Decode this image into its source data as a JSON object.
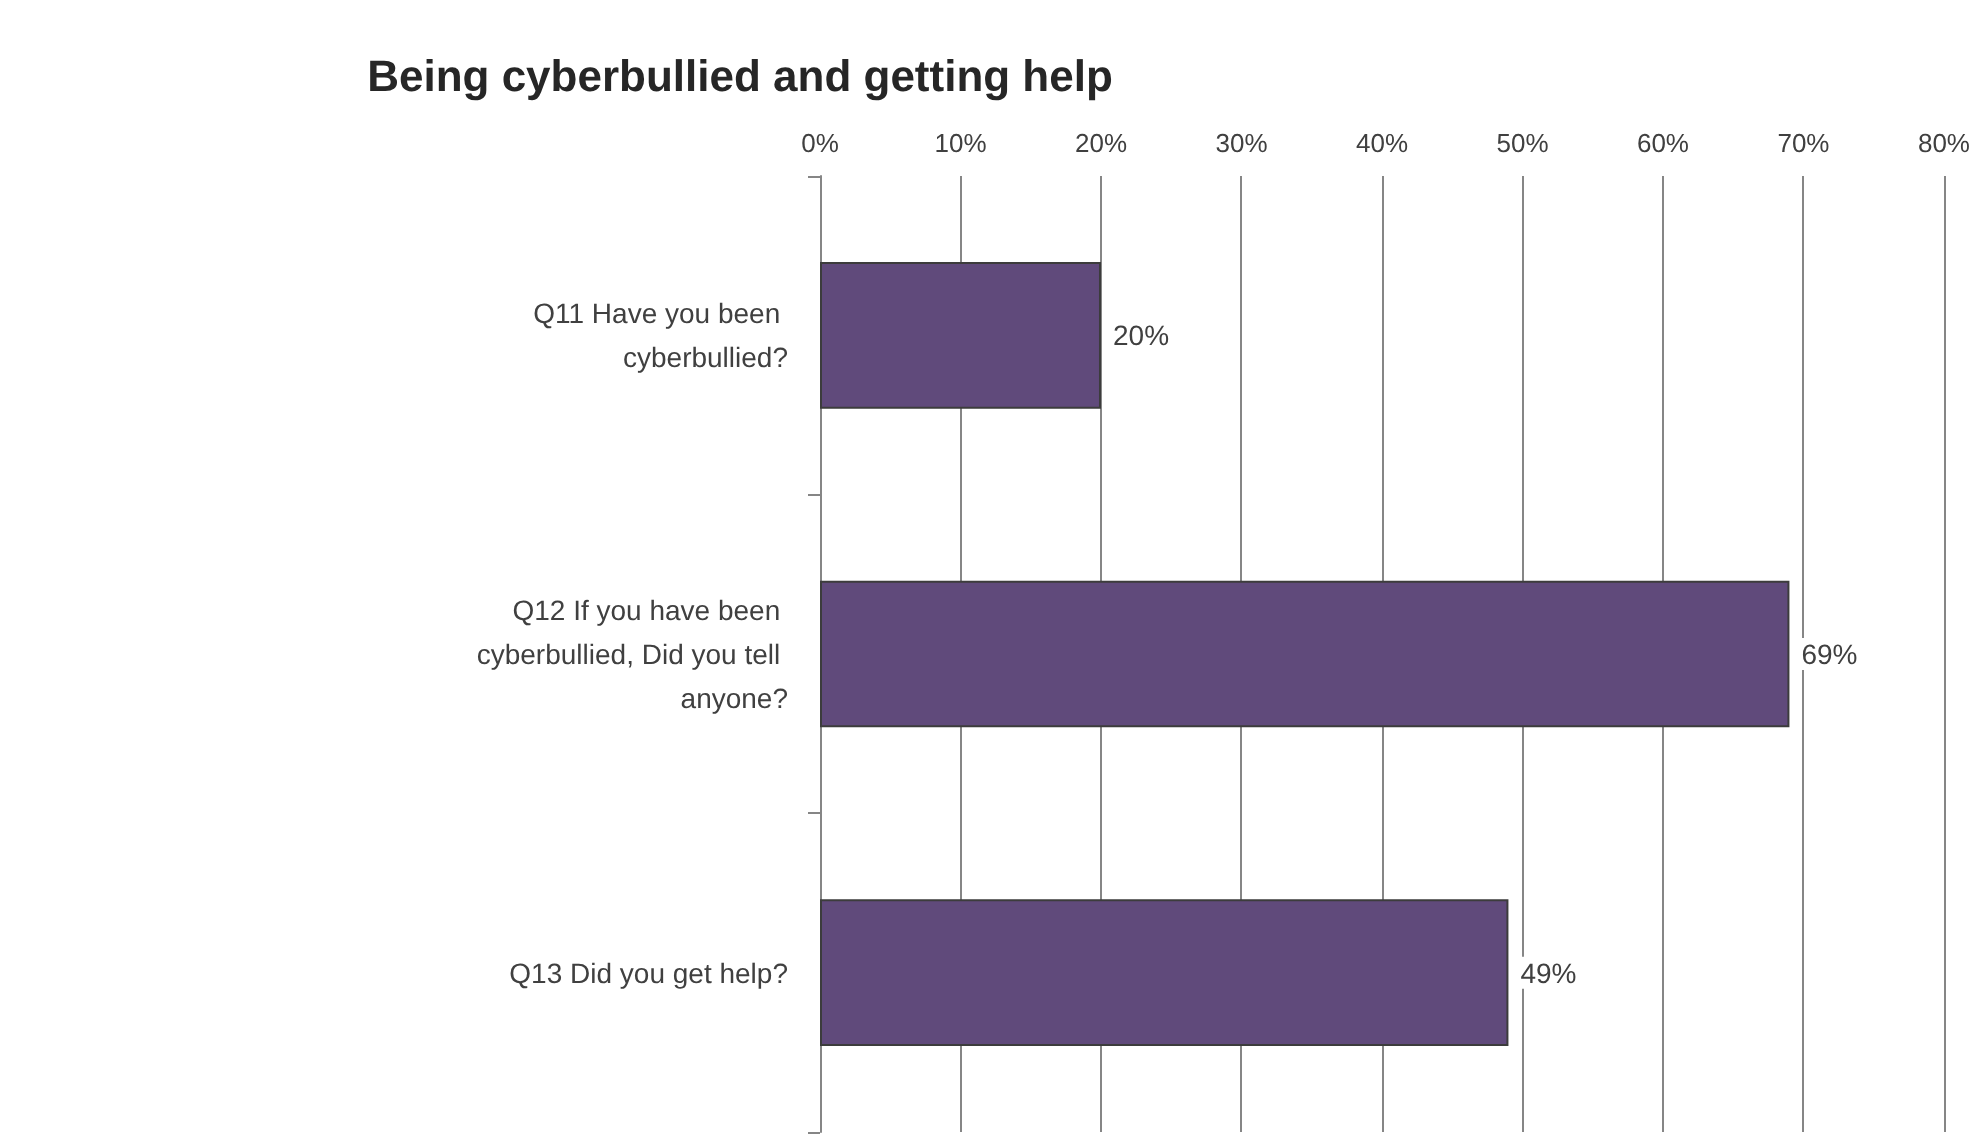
{
  "chart_data": {
    "type": "bar",
    "orientation": "horizontal",
    "title": "Being cyberbullied and getting help",
    "categories": [
      "Q11 Have you been cyberbullied?",
      "Q12 If you have been cyberbullied, Did you tell anyone?",
      "Q13 Did you get help?"
    ],
    "values": [
      20,
      69,
      49
    ],
    "value_labels": [
      "20%",
      "69%",
      "49%"
    ],
    "color": "#604a7b",
    "xlim": [
      0,
      80
    ],
    "xticks": [
      {
        "value": 0,
        "label": "0%"
      },
      {
        "value": 10,
        "label": "10%"
      },
      {
        "value": 20,
        "label": "20%"
      },
      {
        "value": 30,
        "label": "30%"
      },
      {
        "value": 40,
        "label": "40%"
      },
      {
        "value": 50,
        "label": "50%"
      },
      {
        "value": 60,
        "label": "60%"
      },
      {
        "value": 70,
        "label": "70%"
      },
      {
        "value": 80,
        "label": "80%"
      }
    ],
    "grid": "x"
  }
}
